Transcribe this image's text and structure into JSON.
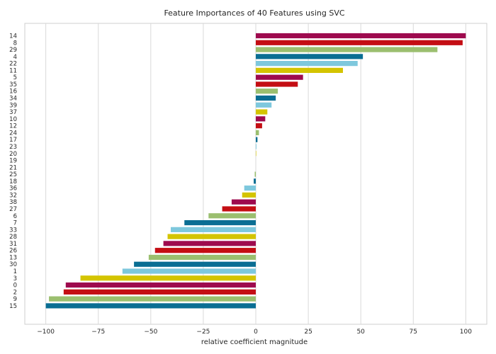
{
  "chart_data": {
    "type": "bar",
    "orientation": "horizontal",
    "title": "Feature Importances of 40 Features using SVC",
    "xlabel": "relative coefficient magnitude",
    "ylabel": "",
    "xlim": [
      -110,
      110
    ],
    "xticks": [
      -100,
      -75,
      -50,
      -25,
      0,
      25,
      50,
      75,
      100
    ],
    "xtick_labels": [
      "−100",
      "−75",
      "−50",
      "−25",
      "0",
      "25",
      "50",
      "75",
      "100"
    ],
    "grid": "vertical",
    "palette": [
      "#9e0a4e",
      "#c40e14",
      "#9bbf6f",
      "#0a6e93",
      "#7ec8dd",
      "#d4c400"
    ],
    "categories": [
      "14",
      "8",
      "29",
      "4",
      "22",
      "11",
      "5",
      "35",
      "16",
      "34",
      "39",
      "37",
      "10",
      "12",
      "24",
      "17",
      "23",
      "20",
      "19",
      "21",
      "25",
      "18",
      "36",
      "32",
      "38",
      "27",
      "6",
      "7",
      "33",
      "28",
      "31",
      "26",
      "13",
      "30",
      "1",
      "3",
      "0",
      "2",
      "9",
      "15"
    ],
    "values": [
      100,
      98.5,
      86.5,
      51,
      48.5,
      41.5,
      22.5,
      20,
      10.5,
      9.5,
      7.5,
      5.5,
      4.5,
      3,
      1.5,
      0.8,
      0.3,
      0.2,
      0,
      0,
      -0.5,
      -1,
      -5.5,
      -6.5,
      -11.5,
      -16,
      -22.5,
      -34,
      -40.5,
      -42,
      -44,
      -48,
      -51,
      -58,
      -63.5,
      -83.5,
      -90.5,
      -91.5,
      -98.5,
      -100
    ]
  }
}
